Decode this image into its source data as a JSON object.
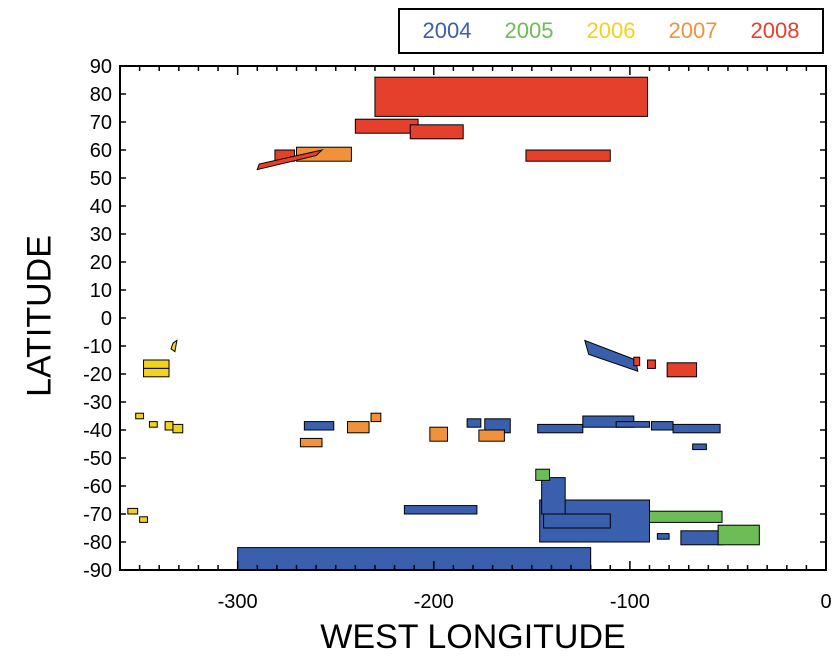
{
  "chart_data": {
    "type": "rectangles",
    "xlabel": "WEST LONGITUDE",
    "ylabel": "LATITUDE",
    "xlim": [
      -360,
      0
    ],
    "ylim": [
      -90,
      90
    ],
    "x_ticks": [
      -300,
      -200,
      -100,
      0
    ],
    "x_tick_labels": [
      "-300",
      "-200",
      "-100",
      "0"
    ],
    "y_ticks": [
      90,
      80,
      70,
      60,
      50,
      40,
      30,
      20,
      10,
      0,
      -10,
      -20,
      -30,
      -40,
      -50,
      -60,
      -70,
      -80,
      -90
    ],
    "y_tick_labels": [
      "90",
      "80",
      "70",
      "60",
      "50",
      "40",
      "30",
      "20",
      "10",
      "0",
      "-10",
      "-20",
      "-30",
      "-40",
      "-50",
      "-60",
      "-70",
      "-80",
      "-90"
    ],
    "legend_position": "top-right",
    "series": [
      {
        "name": "2004",
        "color": "#3a5fad",
        "rects": [
          {
            "x0": -300,
            "x1": -120,
            "y0": -90,
            "y1": -82
          },
          {
            "x0": -146,
            "x1": -90,
            "y0": -80,
            "y1": -65
          },
          {
            "x0": -145,
            "x1": -133,
            "y0": -70,
            "y1": -57
          },
          {
            "x0": -144,
            "x1": -110,
            "y0": -75,
            "y1": -70
          },
          {
            "x0": -215,
            "x1": -178,
            "y0": -70,
            "y1": -67
          },
          {
            "x0": -266,
            "x1": -251,
            "y0": -40,
            "y1": -37
          },
          {
            "x0": -183,
            "x1": -176,
            "y0": -39,
            "y1": -36
          },
          {
            "x0": -174,
            "x1": -161,
            "y0": -41,
            "y1": -36
          },
          {
            "x0": -147,
            "x1": -124,
            "y0": -41,
            "y1": -38
          },
          {
            "x0": -124,
            "x1": -98,
            "y0": -39,
            "y1": -35
          },
          {
            "x0": -107,
            "x1": -90,
            "y0": -39,
            "y1": -37
          },
          {
            "x0": -89,
            "x1": -78,
            "y0": -40,
            "y1": -37
          },
          {
            "x0": -78,
            "x1": -54,
            "y0": -41,
            "y1": -38
          },
          {
            "x0": -68,
            "x1": -61,
            "y0": -47,
            "y1": -45
          },
          {
            "x0": -86,
            "x1": -80,
            "y0": -79,
            "y1": -77
          },
          {
            "x0": -74,
            "x1": -53,
            "y0": -81,
            "y1": -76
          }
        ],
        "polygons": [
          [
            [
              -123,
              -8
            ],
            [
              -121,
              -13
            ],
            [
              -96,
              -19
            ],
            [
              -97,
              -15
            ]
          ]
        ]
      },
      {
        "name": "2005",
        "color": "#6cbd55",
        "rects": [
          {
            "x0": -148,
            "x1": -141,
            "y0": -58,
            "y1": -54
          },
          {
            "x0": -90,
            "x1": -53,
            "y0": -73,
            "y1": -69
          },
          {
            "x0": -55,
            "x1": -34,
            "y0": -81,
            "y1": -74
          }
        ],
        "polygons": []
      },
      {
        "name": "2006",
        "color": "#f2d21f",
        "rects": [
          {
            "x0": -348,
            "x1": -335,
            "y0": -18,
            "y1": -15
          },
          {
            "x0": -348,
            "x1": -335,
            "y0": -21,
            "y1": -18
          },
          {
            "x0": -352,
            "x1": -348,
            "y0": -36,
            "y1": -34
          },
          {
            "x0": -345,
            "x1": -341,
            "y0": -39,
            "y1": -37
          },
          {
            "x0": -337,
            "x1": -333,
            "y0": -40,
            "y1": -37
          },
          {
            "x0": -333,
            "x1": -328,
            "y0": -41,
            "y1": -38
          },
          {
            "x0": -356,
            "x1": -351,
            "y0": -70,
            "y1": -68
          },
          {
            "x0": -350,
            "x1": -346,
            "y0": -73,
            "y1": -71
          }
        ],
        "polygons": [
          [
            [
              -333,
              -9
            ],
            [
              -331,
              -8
            ],
            [
              -332,
              -12
            ],
            [
              -334,
              -11
            ]
          ]
        ]
      },
      {
        "name": "2007",
        "color": "#f0923c",
        "rects": [
          {
            "x0": -270,
            "x1": -242,
            "y0": 56,
            "y1": 61
          },
          {
            "x0": -268,
            "x1": -257,
            "y0": -46,
            "y1": -43
          },
          {
            "x0": -244,
            "x1": -233,
            "y0": -41,
            "y1": -37
          },
          {
            "x0": -232,
            "x1": -227,
            "y0": -37,
            "y1": -34
          },
          {
            "x0": -202,
            "x1": -193,
            "y0": -44,
            "y1": -39
          },
          {
            "x0": -177,
            "x1": -164,
            "y0": -44,
            "y1": -40
          }
        ],
        "polygons": []
      },
      {
        "name": "2008",
        "color": "#e4402b",
        "rects": [
          {
            "x0": -230,
            "x1": -91,
            "y0": 72,
            "y1": 86
          },
          {
            "x0": -240,
            "x1": -208,
            "y0": 66,
            "y1": 71
          },
          {
            "x0": -212,
            "x1": -185,
            "y0": 64,
            "y1": 69
          },
          {
            "x0": -281,
            "x1": -271,
            "y0": 56,
            "y1": 60
          },
          {
            "x0": -153,
            "x1": -110,
            "y0": 56,
            "y1": 60
          },
          {
            "x0": -98,
            "x1": -95,
            "y0": -17,
            "y1": -14
          },
          {
            "x0": -91,
            "x1": -87,
            "y0": -18,
            "y1": -15
          },
          {
            "x0": -81,
            "x1": -66,
            "y0": -21,
            "y1": -16
          }
        ],
        "polygons": [
          [
            [
              -290,
              53
            ],
            [
              -289,
              55
            ],
            [
              -257,
              60
            ],
            [
              -260,
              58
            ]
          ]
        ]
      }
    ]
  }
}
